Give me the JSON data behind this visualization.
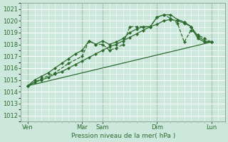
{
  "xlabel": "Pression niveau de la mer( hPa )",
  "bg_color": "#cce8dc",
  "grid_color_major": "#ffffff",
  "grid_color_minor": "#e8f4f0",
  "line_color": "#2d6b2d",
  "ylim": [
    1011.5,
    1021.5
  ],
  "yticks": [
    1012,
    1013,
    1014,
    1015,
    1016,
    1017,
    1018,
    1019,
    1020,
    1021
  ],
  "xlim": [
    0,
    30
  ],
  "day_labels": [
    "Ven",
    "Mar",
    "Sam",
    "Dim",
    "Lun"
  ],
  "day_positions": [
    1,
    9,
    12,
    20,
    28
  ],
  "series": [
    {
      "x": [
        1,
        28
      ],
      "y": [
        1014.5,
        1018.2
      ],
      "style": "solid",
      "marker": null,
      "lw": 0.9
    },
    {
      "x": [
        1,
        2,
        3,
        4,
        5,
        6,
        7,
        8,
        9,
        10,
        11,
        12,
        13,
        14,
        15,
        16,
        17,
        18,
        19,
        20,
        21,
        22,
        23,
        24,
        25,
        26,
        27,
        28
      ],
      "y": [
        1014.5,
        1014.8,
        1015.0,
        1015.2,
        1015.5,
        1015.7,
        1016.0,
        1016.3,
        1016.6,
        1016.9,
        1017.2,
        1017.5,
        1017.8,
        1018.0,
        1018.3,
        1018.6,
        1018.9,
        1019.2,
        1019.5,
        1019.7,
        1020.0,
        1020.1,
        1020.0,
        1019.8,
        1019.5,
        1018.7,
        1018.3,
        1018.2
      ],
      "style": "solid",
      "marker": "D",
      "lw": 0.9
    },
    {
      "x": [
        1,
        2,
        3,
        4,
        5,
        6,
        7,
        8,
        9,
        10,
        11,
        12,
        13,
        14,
        15,
        16,
        17,
        18,
        19,
        20,
        21,
        22,
        23,
        24,
        25,
        26,
        27,
        28
      ],
      "y": [
        1014.5,
        1015.0,
        1015.3,
        1015.6,
        1016.0,
        1016.4,
        1016.8,
        1017.2,
        1017.5,
        1018.3,
        1018.0,
        1018.3,
        1018.0,
        1018.2,
        1018.5,
        1019.0,
        1019.3,
        1019.5,
        1019.5,
        1020.3,
        1020.5,
        1020.5,
        1020.1,
        1019.9,
        1019.5,
        1018.5,
        1018.2,
        1018.2
      ],
      "style": "solid",
      "marker": "D",
      "lw": 0.9
    },
    {
      "x": [
        1,
        3,
        5,
        7,
        9,
        10,
        11,
        12,
        13,
        14,
        15,
        16,
        17,
        18,
        19,
        20,
        21,
        22,
        23,
        24,
        25,
        26,
        27,
        28
      ],
      "y": [
        1014.5,
        1015.1,
        1015.6,
        1016.4,
        1017.0,
        1018.3,
        1018.0,
        1018.0,
        1017.5,
        1017.7,
        1018.0,
        1019.5,
        1019.5,
        1019.5,
        1019.5,
        1020.3,
        1020.5,
        1020.2,
        1019.8,
        1018.2,
        1019.2,
        1018.8,
        1018.5,
        1018.2
      ],
      "style": "dashed",
      "marker": "D",
      "lw": 0.9
    }
  ],
  "minor_vlines_color": "#dff0e8",
  "major_vlines_color": "#a0b8a8"
}
